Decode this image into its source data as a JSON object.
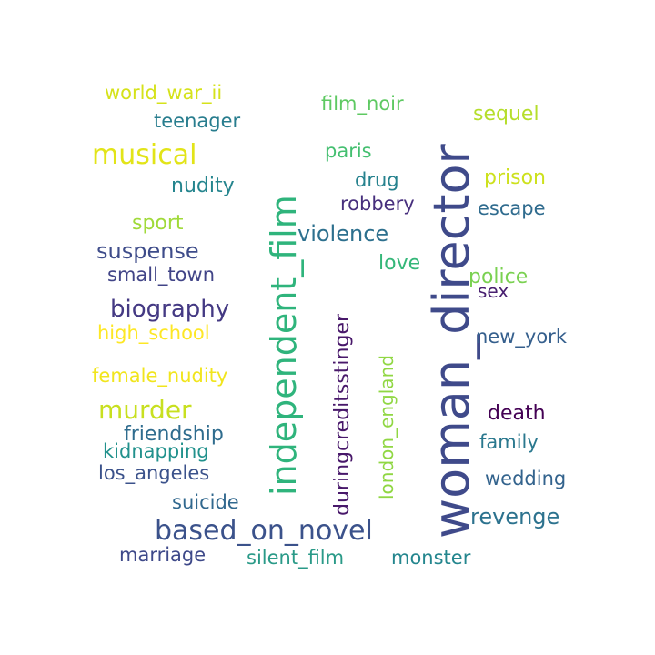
{
  "word_cloud": {
    "words": [
      {
        "text": "woman_director",
        "color": "#3f4a8a",
        "rotated": true
      },
      {
        "text": "independent_film",
        "color": "#2fb47c",
        "rotated": true
      },
      {
        "text": "based_on_novel",
        "color": "#3b528b",
        "rotated": false
      },
      {
        "text": "musical",
        "color": "#e2e418",
        "rotated": false
      },
      {
        "text": "murder",
        "color": "#c8e020",
        "rotated": false
      },
      {
        "text": "biography",
        "color": "#443983",
        "rotated": false
      },
      {
        "text": "revenge",
        "color": "#2c728e",
        "rotated": false
      },
      {
        "text": "suspense",
        "color": "#3e4c8a",
        "rotated": false
      },
      {
        "text": "violence",
        "color": "#2d708e",
        "rotated": false
      },
      {
        "text": "duringcreditsstinger",
        "color": "#48186a",
        "rotated": true
      },
      {
        "text": "sequel",
        "color": "#b5de2b",
        "rotated": false
      },
      {
        "text": "prison",
        "color": "#cde11d",
        "rotated": false
      },
      {
        "text": "nudity",
        "color": "#25858e",
        "rotated": false
      },
      {
        "text": "friendship",
        "color": "#2f6c8e",
        "rotated": false
      },
      {
        "text": "film_noir",
        "color": "#5ec962",
        "rotated": false
      },
      {
        "text": "love",
        "color": "#35b779",
        "rotated": false
      },
      {
        "text": "police",
        "color": "#7ad151",
        "rotated": false
      },
      {
        "text": "london_england",
        "color": "#90d743",
        "rotated": true
      },
      {
        "text": "sport",
        "color": "#a0da39",
        "rotated": false
      },
      {
        "text": "teenager",
        "color": "#287d8e",
        "rotated": false
      },
      {
        "text": "world_war_ii",
        "color": "#d5e21a",
        "rotated": false
      },
      {
        "text": "paris",
        "color": "#44bf70",
        "rotated": false
      },
      {
        "text": "drug",
        "color": "#26828e",
        "rotated": false
      },
      {
        "text": "robbery",
        "color": "#472f7d",
        "rotated": false
      },
      {
        "text": "escape",
        "color": "#2f6b8e",
        "rotated": false
      },
      {
        "text": "small_town",
        "color": "#414487",
        "rotated": false
      },
      {
        "text": "sex",
        "color": "#481f70",
        "rotated": false
      },
      {
        "text": "high_school",
        "color": "#fde725",
        "rotated": false
      },
      {
        "text": "new_york",
        "color": "#355f8d",
        "rotated": false
      },
      {
        "text": "female_nudity",
        "color": "#f1e51d",
        "rotated": false
      },
      {
        "text": "death",
        "color": "#440154",
        "rotated": false
      },
      {
        "text": "family",
        "color": "#2a788e",
        "rotated": false
      },
      {
        "text": "kidnapping",
        "color": "#21918c",
        "rotated": false
      },
      {
        "text": "los_angeles",
        "color": "#3b528b",
        "rotated": false
      },
      {
        "text": "wedding",
        "color": "#33638d",
        "rotated": false
      },
      {
        "text": "suicide",
        "color": "#31688e",
        "rotated": false
      },
      {
        "text": "marriage",
        "color": "#3e4989",
        "rotated": false
      },
      {
        "text": "silent_film",
        "color": "#2a9a88",
        "rotated": false
      },
      {
        "text": "monster",
        "color": "#24868e",
        "rotated": false
      }
    ]
  }
}
